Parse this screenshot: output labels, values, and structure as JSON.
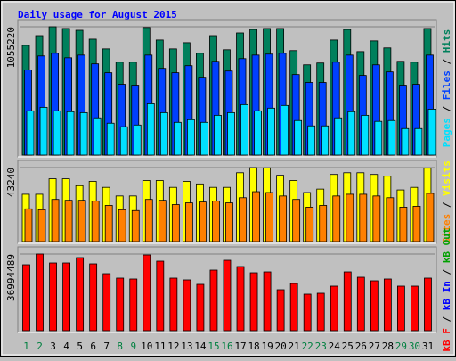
{
  "chart_data": [
    {
      "type": "bar",
      "title": "Daily usage for August 2015",
      "categories": [
        "1",
        "2",
        "3",
        "4",
        "5",
        "6",
        "7",
        "8",
        "9",
        "10",
        "11",
        "12",
        "13",
        "14",
        "15",
        "16",
        "17",
        "18",
        "19",
        "20",
        "21",
        "22",
        "23",
        "24",
        "25",
        "26",
        "27",
        "28",
        "29",
        "30",
        "31"
      ],
      "highlight_categories": [
        "1",
        "2",
        "8",
        "9",
        "15",
        "16",
        "22",
        "23",
        "29",
        "30"
      ],
      "highlight_color": "#008040",
      "ylim": [
        0,
        1055220
      ],
      "yticks": [
        1055220
      ],
      "legend_separator": " / ",
      "series": [
        {
          "name": "Pages",
          "color": "#00e0ff",
          "values": [
            364000,
            393000,
            364000,
            357000,
            349000,
            306000,
            262000,
            233000,
            247000,
            422000,
            349000,
            269000,
            291000,
            269000,
            327000,
            349000,
            415000,
            364000,
            386000,
            408000,
            284000,
            240000,
            240000,
            306000,
            357000,
            327000,
            277000,
            284000,
            218000,
            218000,
            378000
          ]
        },
        {
          "name": "Files",
          "color": "#0040ff",
          "values": [
            699000,
            815000,
            837000,
            800000,
            822000,
            750000,
            677000,
            582000,
            575000,
            822000,
            713000,
            677000,
            735000,
            640000,
            771000,
            691000,
            793000,
            822000,
            830000,
            837000,
            662000,
            597000,
            597000,
            764000,
            822000,
            655000,
            742000,
            684000,
            575000,
            582000,
            822000
          ]
        },
        {
          "name": "Hits",
          "color": "#00805c",
          "values": [
            902000,
            982000,
            1055220,
            1041000,
            1026000,
            953000,
            873000,
            764000,
            764000,
            1049000,
            946000,
            873000,
            924000,
            837000,
            982000,
            866000,
            1004000,
            1033000,
            1041000,
            1041000,
            859000,
            742000,
            757000,
            946000,
            1033000,
            851000,
            939000,
            881000,
            771000,
            764000,
            1041000
          ]
        }
      ]
    },
    {
      "type": "bar",
      "ylim": [
        0,
        43240
      ],
      "yticks": [
        43240
      ],
      "legend_separator": " / ",
      "series": [
        {
          "name": "Sites",
          "color": "#ff8000",
          "values": [
            19110,
            18600,
            24640,
            24130,
            24130,
            23630,
            21120,
            18600,
            18100,
            24640,
            24130,
            21620,
            22630,
            23130,
            23630,
            22630,
            25640,
            29160,
            28660,
            26650,
            24640,
            20110,
            21120,
            26650,
            27650,
            27650,
            26650,
            25640,
            20110,
            20610,
            28160
          ]
        },
        {
          "name": "Visits",
          "color": "#ffff00",
          "values": [
            27650,
            27650,
            36700,
            36700,
            32680,
            35200,
            31680,
            26650,
            26650,
            35700,
            35700,
            31680,
            35200,
            33690,
            31680,
            31680,
            40220,
            43240,
            43100,
            38720,
            35700,
            28660,
            30670,
            39220,
            40220,
            40220,
            39220,
            38210,
            30170,
            31680,
            42900
          ]
        }
      ]
    },
    {
      "type": "bar",
      "ylim": [
        0,
        36994489
      ],
      "yticks": [
        36994489
      ],
      "legend_separator": " / ",
      "series": [
        {
          "name": "kB F",
          "color": "#ff0000",
          "values": [
            31830000,
            36994489,
            32690000,
            32690000,
            35270000,
            32260000,
            27530000,
            25380000,
            24950000,
            36560000,
            33550000,
            25380000,
            24520000,
            22370000,
            29250000,
            33980000,
            30970000,
            27960000,
            28390000,
            19790000,
            22800000,
            17640000,
            18070000,
            21510000,
            28390000,
            25810000,
            24090000,
            24950000,
            21510000,
            21510000,
            25380000
          ]
        }
      ],
      "legend_extra": [
        {
          "name": "kB In",
          "color": "#0000ff"
        },
        {
          "name": "kB Out",
          "color": "#00a000"
        }
      ]
    }
  ]
}
